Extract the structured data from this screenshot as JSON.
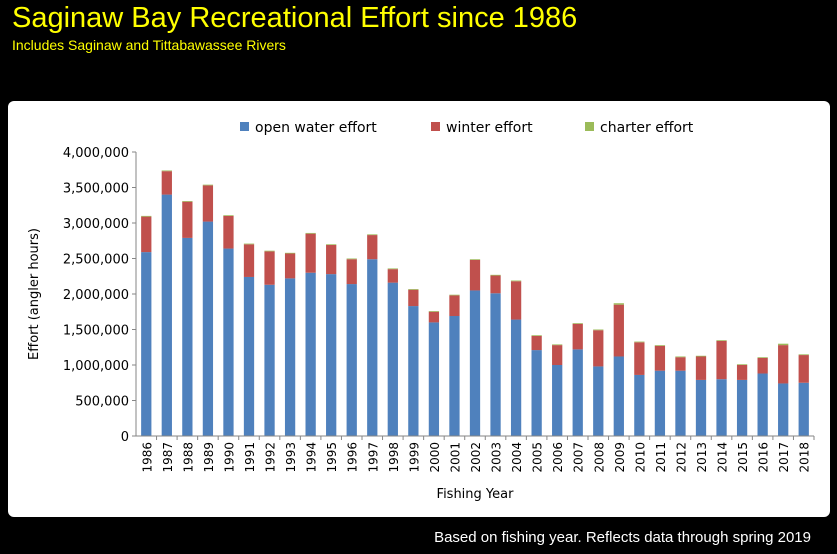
{
  "slide": {
    "title": "Saginaw Bay Recreational Effort since 1986",
    "subtitle": "Includes Saginaw and Tittabawassee Rivers",
    "footer": "Based on fishing year. Reflects data through spring 2019"
  },
  "colors": {
    "open_water": "#4F81BD",
    "winter": "#C0504D",
    "charter": "#9BBB59",
    "title": "#FFFF00"
  },
  "chart_data": {
    "type": "bar",
    "stacked": true,
    "xlabel": "Fishing Year",
    "ylabel": "Effort (angler hours)",
    "ylim": [
      0,
      4000000
    ],
    "yticks": [
      0,
      500000,
      1000000,
      1500000,
      2000000,
      2500000,
      3000000,
      3500000,
      4000000
    ],
    "ytick_labels": [
      "0",
      "500,000",
      "1,000,000",
      "1,500,000",
      "2,000,000",
      "2,500,000",
      "3,000,000",
      "3,500,000",
      "4,000,000"
    ],
    "grid": false,
    "legend_position": "top",
    "categories": [
      "1986",
      "1987",
      "1988",
      "1989",
      "1990",
      "1991",
      "1992",
      "1993",
      "1994",
      "1995",
      "1996",
      "1997",
      "1998",
      "1999",
      "2000",
      "2001",
      "2002",
      "2003",
      "2004",
      "2005",
      "2006",
      "2007",
      "2008",
      "2009",
      "2010",
      "2011",
      "2012",
      "2013",
      "2014",
      "2015",
      "2016",
      "2017",
      "2018"
    ],
    "series": [
      {
        "name": "open water effort",
        "color": "#4F81BD",
        "values": [
          2590000,
          3400000,
          2790000,
          3020000,
          2640000,
          2240000,
          2130000,
          2220000,
          2300000,
          2280000,
          2140000,
          2490000,
          2160000,
          1830000,
          1600000,
          1690000,
          2050000,
          2010000,
          1640000,
          1210000,
          1000000,
          1220000,
          980000,
          1120000,
          860000,
          920000,
          920000,
          790000,
          800000,
          790000,
          880000,
          740000,
          750000
        ]
      },
      {
        "name": "winter effort",
        "color": "#C0504D",
        "values": [
          500000,
          330000,
          510000,
          510000,
          460000,
          460000,
          470000,
          350000,
          550000,
          410000,
          350000,
          340000,
          190000,
          230000,
          150000,
          290000,
          430000,
          250000,
          540000,
          200000,
          280000,
          360000,
          510000,
          730000,
          460000,
          350000,
          190000,
          330000,
          540000,
          210000,
          220000,
          540000,
          390000
        ]
      },
      {
        "name": "charter effort",
        "color": "#9BBB59",
        "values": [
          10000,
          10000,
          10000,
          10000,
          10000,
          10000,
          10000,
          10000,
          10000,
          10000,
          10000,
          10000,
          10000,
          10000,
          10000,
          10000,
          10000,
          10000,
          10000,
          10000,
          10000,
          10000,
          10000,
          20000,
          10000,
          10000,
          10000,
          10000,
          10000,
          10000,
          10000,
          20000,
          10000
        ]
      }
    ]
  }
}
